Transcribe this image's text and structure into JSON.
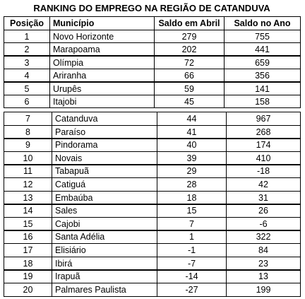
{
  "title": "RANKING DO EMPREGO NA REGIÃO DE CATANDUVA",
  "header": [
    "Posição",
    "Município",
    "Saldo em Abril",
    "Saldo no Ano"
  ],
  "tables": [
    {
      "rows": [
        [
          1,
          "Novo Horizonte",
          279,
          755
        ],
        [
          2,
          "Marapoama",
          202,
          441
        ],
        [
          3,
          "Olímpia",
          72,
          659
        ],
        [
          4,
          "Ariranha",
          66,
          356
        ],
        [
          5,
          "Urupês",
          59,
          141
        ],
        [
          6,
          "Itajobi",
          45,
          158
        ]
      ]
    },
    {
      "rows": [
        [
          7,
          "Catanduva",
          44,
          967
        ],
        [
          8,
          "Paraíso",
          41,
          268
        ],
        [
          9,
          "Pindorama",
          40,
          174
        ],
        [
          10,
          "Novais",
          39,
          410
        ],
        [
          11,
          "Tabapuã",
          29,
          -18
        ],
        [
          12,
          "Catiguá",
          28,
          42
        ],
        [
          13,
          "Embaúba",
          18,
          31
        ],
        [
          14,
          "Sales",
          15,
          26
        ],
        [
          15,
          "Cajobi",
          7,
          -6
        ],
        [
          16,
          "Santa Adélia",
          1,
          322
        ],
        [
          17,
          "Elisiário",
          -1,
          84
        ],
        [
          18,
          "Ibirá",
          -7,
          23
        ],
        [
          19,
          "Irapuã",
          -14,
          13
        ],
        [
          20,
          "Palmares Paulista",
          -27,
          199
        ]
      ]
    }
  ]
}
